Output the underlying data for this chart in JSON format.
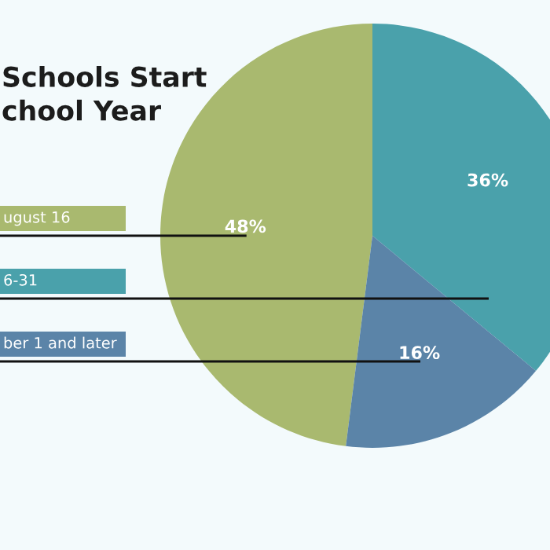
{
  "chart_data": {
    "type": "pie",
    "title": "Schools Start\nchool Year",
    "categories": [
      "ugust 16",
      "6-31",
      "ber 1 and later"
    ],
    "values": [
      48,
      36,
      16
    ],
    "value_labels": [
      "48%",
      "36%",
      "16%"
    ],
    "colors": [
      "#a9b96f",
      "#4aa1ab",
      "#5b84a8"
    ]
  }
}
